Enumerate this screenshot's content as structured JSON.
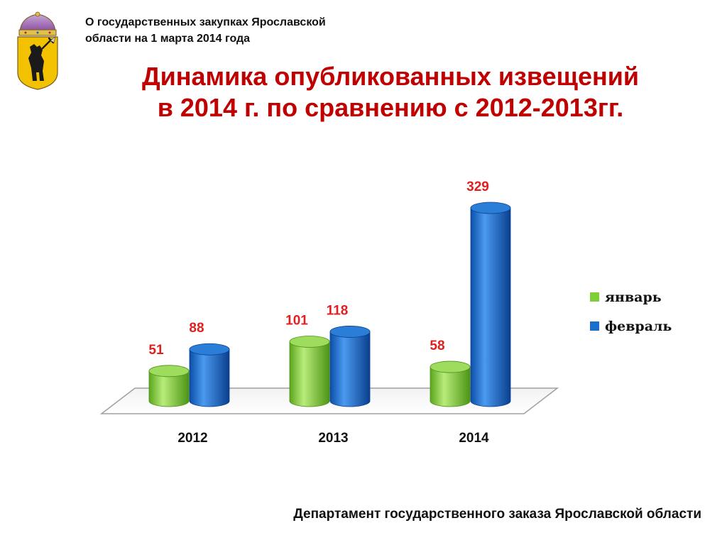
{
  "header": {
    "org_line1": "О государственных закупках Ярославской",
    "org_line2": "области на 1 марта 2014 года"
  },
  "title": {
    "line1": "Динамика опубликованных извещений",
    "line2": "в 2014 г. по сравнению с 2012-2013гг."
  },
  "footer": {
    "text": "Департамент государственного заказа Ярославской области"
  },
  "chart_data": {
    "type": "bar",
    "categories": [
      "2012",
      "2013",
      "2014"
    ],
    "series": [
      {
        "name": "январь",
        "values": [
          51,
          101,
          58
        ],
        "color": "#7fcf3a"
      },
      {
        "name": "февраль",
        "values": [
          88,
          118,
          329
        ],
        "color": "#1a6fcc"
      }
    ],
    "ylim": [
      0,
      329
    ],
    "data_label_color": "#e02020",
    "legend_position": "right",
    "grid": false,
    "style": "3d-cylinder"
  }
}
